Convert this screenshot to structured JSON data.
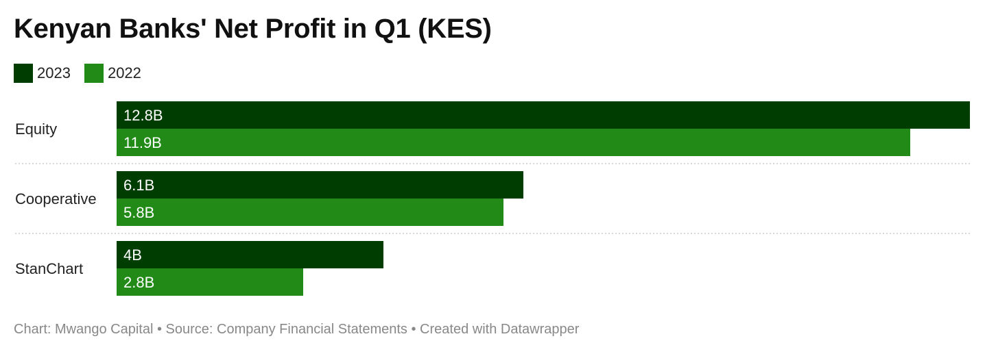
{
  "title": "Kenyan Banks' Net Profit in Q1 (KES)",
  "legend": [
    {
      "label": "2023",
      "color": "#003d00"
    },
    {
      "label": "2022",
      "color": "#228b17"
    }
  ],
  "footer": "Chart: Mwango Capital • Source: Company Financial Statements • Created with Datawrapper",
  "chart_data": {
    "type": "bar",
    "orientation": "horizontal",
    "title": "Kenyan Banks' Net Profit in Q1 (KES)",
    "categories": [
      "Equity",
      "Cooperative",
      "StanChart"
    ],
    "series": [
      {
        "name": "2023",
        "color": "#003d00",
        "values": [
          12.8,
          6.1,
          4.0
        ],
        "labels": [
          "12.8B",
          "6.1B",
          "4B"
        ]
      },
      {
        "name": "2022",
        "color": "#228b17",
        "values": [
          11.9,
          5.8,
          2.8
        ],
        "labels": [
          "11.9B",
          "5.8B",
          "2.8B"
        ]
      }
    ],
    "unit": "B",
    "xlim": [
      0,
      12.8
    ],
    "grid": false,
    "legend_position": "top-left",
    "separator_style": "dotted"
  }
}
